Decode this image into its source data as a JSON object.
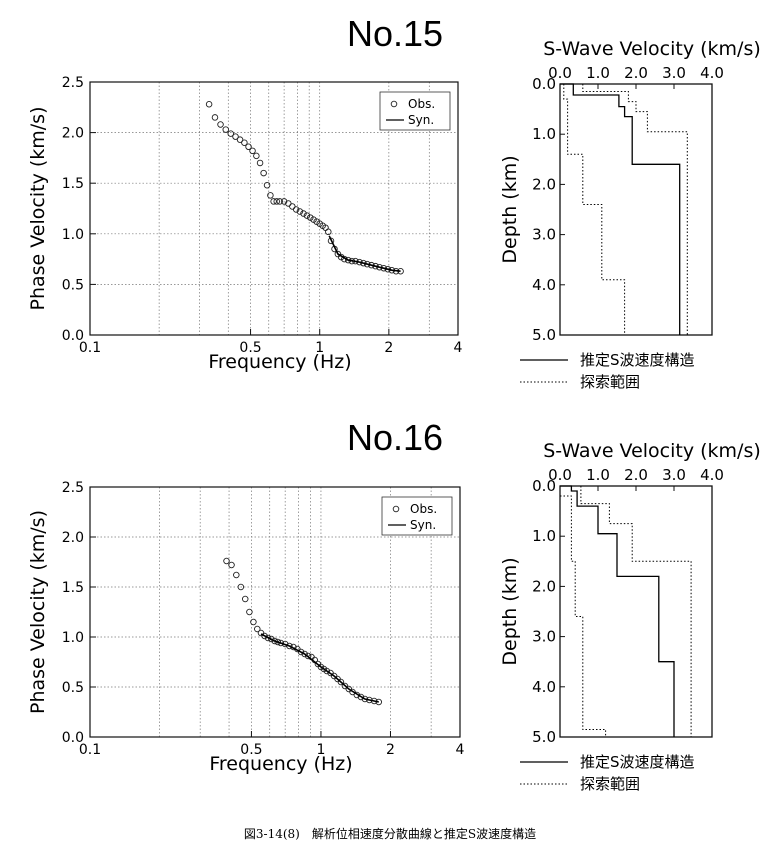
{
  "caption": "図3-14(8)　解析位相速度分散曲線と推定S波速度構造",
  "chart_data": [
    {
      "type": "scatter",
      "title": "No.15",
      "xlabel": "Frequency (Hz)",
      "ylabel": "Phase Velocity (km/s)",
      "xscale": "log",
      "xlim": [
        0.1,
        4
      ],
      "ylim": [
        0,
        2.5
      ],
      "xticks": [
        "0.1",
        "0.5",
        "1",
        "2",
        "4"
      ],
      "yticks": [
        "0.0",
        "0.5",
        "1.0",
        "1.5",
        "2.0",
        "2.5"
      ],
      "grid": true,
      "legend": {
        "placement": "top-right",
        "obs": "Obs.",
        "syn": "Syn."
      },
      "series": [
        {
          "name": "Obs.",
          "x": [
            0.33,
            0.35,
            0.37,
            0.39,
            0.41,
            0.43,
            0.45,
            0.47,
            0.49,
            0.51,
            0.53,
            0.55,
            0.57,
            0.59,
            0.61,
            0.63,
            0.65,
            0.67,
            0.7,
            0.73,
            0.76,
            0.79,
            0.82,
            0.85,
            0.88,
            0.91,
            0.94,
            0.97,
            1.0,
            1.03,
            1.06,
            1.09,
            1.12,
            1.16,
            1.2,
            1.24,
            1.28,
            1.33,
            1.38,
            1.43,
            1.49,
            1.55,
            1.61,
            1.68,
            1.75,
            1.82,
            1.9,
            1.98,
            2.06,
            2.15,
            2.25
          ],
          "y": [
            2.28,
            2.15,
            2.08,
            2.03,
            1.99,
            1.96,
            1.93,
            1.9,
            1.86,
            1.82,
            1.77,
            1.7,
            1.6,
            1.48,
            1.38,
            1.32,
            1.32,
            1.32,
            1.32,
            1.3,
            1.27,
            1.24,
            1.22,
            1.2,
            1.18,
            1.16,
            1.14,
            1.12,
            1.1,
            1.08,
            1.06,
            1.02,
            0.93,
            0.85,
            0.8,
            0.77,
            0.75,
            0.74,
            0.73,
            0.73,
            0.72,
            0.71,
            0.7,
            0.69,
            0.68,
            0.67,
            0.66,
            0.65,
            0.64,
            0.63,
            0.63
          ]
        },
        {
          "name": "Syn.",
          "x": [
            1.1,
            1.2,
            1.33,
            1.49,
            1.68,
            1.9,
            2.06,
            2.25
          ],
          "y": [
            0.98,
            0.8,
            0.74,
            0.72,
            0.69,
            0.66,
            0.64,
            0.63
          ]
        }
      ]
    },
    {
      "type": "line",
      "title": "S-Wave Velocity (km/s)",
      "xlabel": "S-Wave Velocity (km/s)",
      "ylabel": "Depth (km)",
      "xlim": [
        0,
        4
      ],
      "ylim": [
        0,
        5
      ],
      "xticks": [
        "0.0",
        "1.0",
        "2.0",
        "3.0",
        "4.0"
      ],
      "yticks": [
        "0.0",
        "1.0",
        "2.0",
        "3.0",
        "4.0",
        "5.0"
      ],
      "legend": {
        "solid": "推定S波速度構造",
        "dotted": "探索範囲"
      },
      "series": [
        {
          "name": "推定S波速度構造",
          "style": "solid",
          "points": [
            [
              0.0,
              0.0
            ],
            [
              0.35,
              0.0
            ],
            [
              0.35,
              0.22
            ],
            [
              1.55,
              0.22
            ],
            [
              1.55,
              0.45
            ],
            [
              1.7,
              0.45
            ],
            [
              1.7,
              0.65
            ],
            [
              1.9,
              0.65
            ],
            [
              1.9,
              1.6
            ],
            [
              3.15,
              1.6
            ],
            [
              3.15,
              5.0
            ]
          ]
        },
        {
          "name": "探索範囲 (min)",
          "style": "dotted",
          "points": [
            [
              0.1,
              0.0
            ],
            [
              0.1,
              0.3
            ],
            [
              0.2,
              0.3
            ],
            [
              0.2,
              1.4
            ],
            [
              0.6,
              1.4
            ],
            [
              0.6,
              2.4
            ],
            [
              1.1,
              2.4
            ],
            [
              1.1,
              3.9
            ],
            [
              1.7,
              3.9
            ],
            [
              1.7,
              5.0
            ]
          ]
        },
        {
          "name": "探索範囲 (max)",
          "style": "dotted",
          "points": [
            [
              0.6,
              0.0
            ],
            [
              0.6,
              0.15
            ],
            [
              1.8,
              0.15
            ],
            [
              1.8,
              0.35
            ],
            [
              2.0,
              0.35
            ],
            [
              2.0,
              0.55
            ],
            [
              2.3,
              0.55
            ],
            [
              2.3,
              0.95
            ],
            [
              3.35,
              0.95
            ],
            [
              3.35,
              5.0
            ]
          ]
        }
      ]
    },
    {
      "type": "scatter",
      "title": "No.16",
      "xlabel": "Frequency (Hz)",
      "ylabel": "Phase Velocity (km/s)",
      "xscale": "log",
      "xlim": [
        0.1,
        4
      ],
      "ylim": [
        0,
        2.5
      ],
      "xticks": [
        "0.1",
        "0.5",
        "1",
        "2",
        "4"
      ],
      "yticks": [
        "0.0",
        "0.5",
        "1.0",
        "1.5",
        "2.0",
        "2.5"
      ],
      "grid": true,
      "legend": {
        "placement": "top-right",
        "obs": "Obs.",
        "syn": "Syn."
      },
      "series": [
        {
          "name": "Obs.",
          "x": [
            0.39,
            0.41,
            0.43,
            0.45,
            0.47,
            0.49,
            0.51,
            0.53,
            0.55,
            0.57,
            0.59,
            0.61,
            0.63,
            0.65,
            0.67,
            0.7,
            0.73,
            0.76,
            0.79,
            0.82,
            0.85,
            0.88,
            0.91,
            0.94,
            0.97,
            1.0,
            1.03,
            1.06,
            1.1,
            1.14,
            1.18,
            1.22,
            1.27,
            1.32,
            1.37,
            1.43,
            1.49,
            1.55,
            1.62,
            1.7,
            1.78
          ],
          "y": [
            1.76,
            1.72,
            1.62,
            1.5,
            1.38,
            1.25,
            1.15,
            1.08,
            1.04,
            1.01,
            0.99,
            0.98,
            0.96,
            0.95,
            0.94,
            0.93,
            0.91,
            0.9,
            0.88,
            0.85,
            0.83,
            0.81,
            0.8,
            0.77,
            0.73,
            0.7,
            0.68,
            0.66,
            0.64,
            0.61,
            0.58,
            0.55,
            0.51,
            0.48,
            0.45,
            0.42,
            0.4,
            0.38,
            0.37,
            0.36,
            0.35
          ]
        },
        {
          "name": "Syn.",
          "x": [
            0.55,
            0.63,
            0.73,
            0.85,
            1.0,
            1.14,
            1.32,
            1.55,
            1.78
          ],
          "y": [
            1.03,
            0.96,
            0.91,
            0.83,
            0.7,
            0.61,
            0.48,
            0.38,
            0.35
          ]
        }
      ]
    },
    {
      "type": "line",
      "title": "S-Wave Velocity (km/s)",
      "xlabel": "S-Wave Velocity (km/s)",
      "ylabel": "Depth (km)",
      "xlim": [
        0,
        4
      ],
      "ylim": [
        0,
        5
      ],
      "xticks": [
        "0.0",
        "1.0",
        "2.0",
        "3.0",
        "4.0"
      ],
      "yticks": [
        "0.0",
        "1.0",
        "2.0",
        "3.0",
        "4.0",
        "5.0"
      ],
      "legend": {
        "solid": "推定S波速度構造",
        "dotted": "探索範囲"
      },
      "series": [
        {
          "name": "推定S波速度構造",
          "style": "solid",
          "points": [
            [
              0.0,
              0.0
            ],
            [
              0.3,
              0.0
            ],
            [
              0.3,
              0.1
            ],
            [
              0.45,
              0.1
            ],
            [
              0.45,
              0.4
            ],
            [
              1.0,
              0.4
            ],
            [
              1.0,
              0.95
            ],
            [
              1.5,
              0.95
            ],
            [
              1.5,
              1.8
            ],
            [
              2.6,
              1.8
            ],
            [
              2.6,
              3.5
            ],
            [
              3.0,
              3.5
            ],
            [
              3.0,
              5.0
            ]
          ]
        },
        {
          "name": "探索範囲 (min)",
          "style": "dotted",
          "points": [
            [
              0.0,
              0.2
            ],
            [
              0.3,
              0.2
            ],
            [
              0.3,
              1.5
            ],
            [
              0.4,
              1.5
            ],
            [
              0.4,
              2.6
            ],
            [
              0.6,
              2.6
            ],
            [
              0.6,
              4.85
            ],
            [
              1.2,
              4.85
            ],
            [
              1.2,
              5.0
            ]
          ]
        },
        {
          "name": "探索範囲 (max)",
          "style": "dotted",
          "points": [
            [
              0.55,
              0.0
            ],
            [
              0.55,
              0.35
            ],
            [
              1.3,
              0.35
            ],
            [
              1.3,
              0.75
            ],
            [
              1.9,
              0.75
            ],
            [
              1.9,
              1.5
            ],
            [
              3.45,
              1.5
            ],
            [
              3.45,
              5.0
            ]
          ]
        }
      ]
    }
  ]
}
